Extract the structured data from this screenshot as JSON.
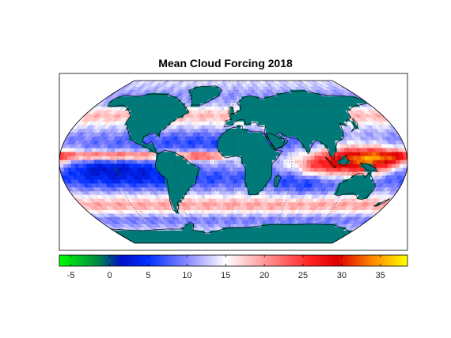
{
  "title": "Mean Cloud Forcing 2018",
  "colorbar": {
    "min": -6.5,
    "max": 38.5,
    "ticks": [
      -5,
      0,
      5,
      10,
      15,
      20,
      25,
      30,
      35
    ],
    "stops": [
      {
        "value": -6.5,
        "color": "#00ff00"
      },
      {
        "value": -1.5,
        "color": "#008844"
      },
      {
        "value": 1.5,
        "color": "#0010c8"
      },
      {
        "value": 5,
        "color": "#0030ff"
      },
      {
        "value": 10,
        "color": "#8888ff"
      },
      {
        "value": 15,
        "color": "#ffffff"
      },
      {
        "value": 20,
        "color": "#ff9999"
      },
      {
        "value": 26,
        "color": "#ff2020"
      },
      {
        "value": 29.5,
        "color": "#dd0000"
      },
      {
        "value": 34,
        "color": "#ff8800"
      },
      {
        "value": 38.5,
        "color": "#ffff00"
      }
    ]
  },
  "colors": {
    "land": "#007a78",
    "coastline": "#000000",
    "graticule": "#333333"
  }
}
